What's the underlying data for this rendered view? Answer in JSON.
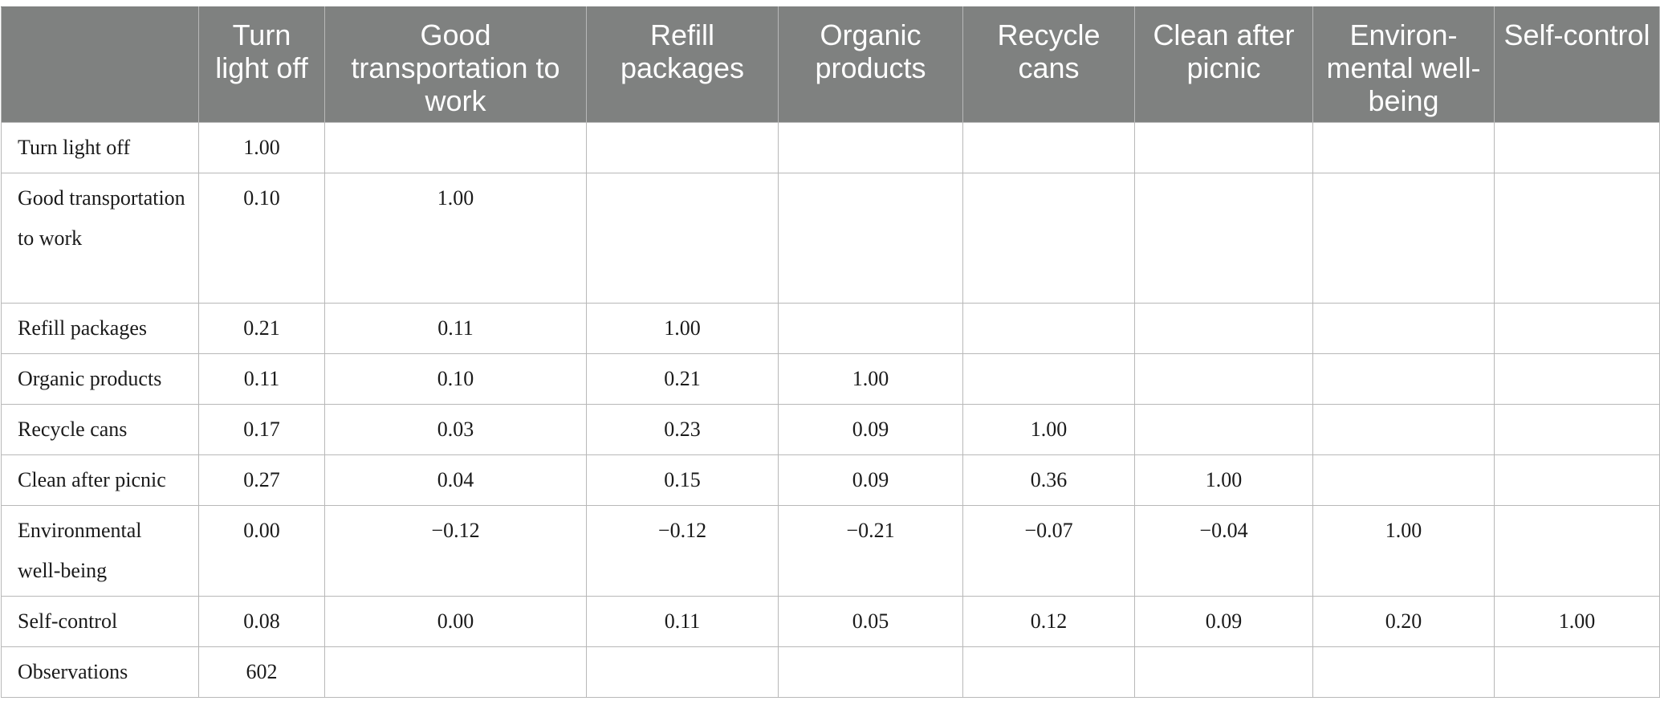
{
  "table": {
    "columns": [
      "",
      "Turn light off",
      "Good transportation to work",
      "Refill packages",
      "Organic products",
      "Recycle cans",
      "Clean after picnic",
      "Environ-mental well-being",
      "Self-control"
    ],
    "rows": [
      {
        "label": "Turn light off",
        "cells": [
          "1.00",
          "",
          "",
          "",
          "",
          "",
          "",
          ""
        ]
      },
      {
        "label": "Good transportation to work",
        "cells": [
          "0.10",
          "1.00",
          "",
          "",
          "",
          "",
          "",
          ""
        ]
      },
      {
        "label": "Refill packages",
        "cells": [
          "0.21",
          "0.11",
          "1.00",
          "",
          "",
          "",
          "",
          ""
        ]
      },
      {
        "label": "Organic products",
        "cells": [
          "0.11",
          "0.10",
          "0.21",
          "1.00",
          "",
          "",
          "",
          ""
        ]
      },
      {
        "label": "Recycle cans",
        "cells": [
          "0.17",
          "0.03",
          "0.23",
          "0.09",
          "1.00",
          "",
          "",
          ""
        ]
      },
      {
        "label": "Clean after picnic",
        "cells": [
          "0.27",
          "0.04",
          "0.15",
          "0.09",
          "0.36",
          "1.00",
          "",
          ""
        ]
      },
      {
        "label": "Environmental well-being",
        "cells": [
          "0.00",
          "−0.12",
          "−0.12",
          "−0.21",
          "−0.07",
          "−0.04",
          "1.00",
          ""
        ]
      },
      {
        "label": "Self-control",
        "cells": [
          "0.08",
          "0.00",
          "0.11",
          "0.05",
          "0.12",
          "0.09",
          "0.20",
          "1.00"
        ]
      },
      {
        "label": "Observations",
        "cells": [
          "602",
          "",
          "",
          "",
          "",
          "",
          "",
          ""
        ]
      }
    ]
  }
}
